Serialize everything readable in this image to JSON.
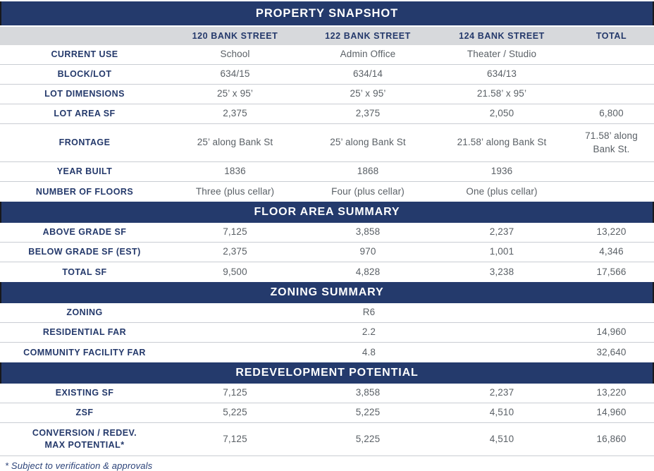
{
  "colors": {
    "band_navy": "#243A6C",
    "band_edge_dark": "#17181c",
    "header_gray": "#D7D9DC",
    "label_navy": "#24396B",
    "value_gray": "#5A6066",
    "row_separator": "#C9CDD3",
    "footnote_blue": "#2C4379",
    "band_text": "#FFFFFF"
  },
  "columns": {
    "c1": "120 BANK STREET",
    "c2": "122 BANK STREET",
    "c3": "124 BANK STREET",
    "c4": "TOTAL"
  },
  "property_snapshot": {
    "title": "PROPERTY SNAPSHOT",
    "rows": [
      {
        "label": "CURRENT USE",
        "v1": "School",
        "v2": "Admin Office",
        "v3": "Theater / Studio",
        "total": ""
      },
      {
        "label": "BLOCK/LOT",
        "v1": "634/15",
        "v2": "634/14",
        "v3": "634/13",
        "total": ""
      },
      {
        "label": "LOT DIMENSIONS",
        "v1": "25’ x 95’",
        "v2": "25’ x 95’",
        "v3": "21.58’ x 95’",
        "total": ""
      },
      {
        "label": "LOT AREA SF",
        "v1": "2,375",
        "v2": "2,375",
        "v3": "2,050",
        "total": "6,800"
      },
      {
        "label": "FRONTAGE",
        "v1": "25’ along Bank St",
        "v2": "25’ along Bank St",
        "v3": "21.58’ along Bank St",
        "total": "71.58’ along Bank St."
      },
      {
        "label": "YEAR BUILT",
        "v1": "1836",
        "v2": "1868",
        "v3": "1936",
        "total": ""
      },
      {
        "label": "NUMBER OF FLOORS",
        "v1": "Three (plus cellar)",
        "v2": "Four (plus cellar)",
        "v3": "One (plus cellar)",
        "total": ""
      }
    ]
  },
  "floor_area": {
    "title": "FLOOR AREA SUMMARY",
    "rows": [
      {
        "label": "ABOVE GRADE SF",
        "v1": "7,125",
        "v2": "3,858",
        "v3": "2,237",
        "total": "13,220"
      },
      {
        "label": "BELOW GRADE SF (EST)",
        "v1": "2,375",
        "v2": "970",
        "v3": "1,001",
        "total": "4,346"
      },
      {
        "label": "TOTAL SF",
        "v1": "9,500",
        "v2": "4,828",
        "v3": "3,238",
        "total": "17,566"
      }
    ]
  },
  "zoning": {
    "title": "ZONING SUMMARY",
    "rows": [
      {
        "label": "ZONING",
        "value": "R6",
        "total": ""
      },
      {
        "label": "RESIDENTIAL FAR",
        "value": "2.2",
        "total": "14,960"
      },
      {
        "label": "COMMUNITY FACILITY FAR",
        "value": "4.8",
        "total": "32,640"
      }
    ]
  },
  "redevelopment": {
    "title": "REDEVELOPMENT POTENTIAL",
    "rows": [
      {
        "label": "EXISTING SF",
        "v1": "7,125",
        "v2": "3,858",
        "v3": "2,237",
        "total": "13,220"
      },
      {
        "label": "ZSF",
        "v1": "5,225",
        "v2": "5,225",
        "v3": "4,510",
        "total": "14,960"
      },
      {
        "label": "CONVERSION / REDEV. MAX POTENTIAL*",
        "v1": "7,125",
        "v2": "5,225",
        "v3": "4,510",
        "total": "16,860"
      }
    ]
  },
  "footnote": "* Subject to verification & approvals"
}
